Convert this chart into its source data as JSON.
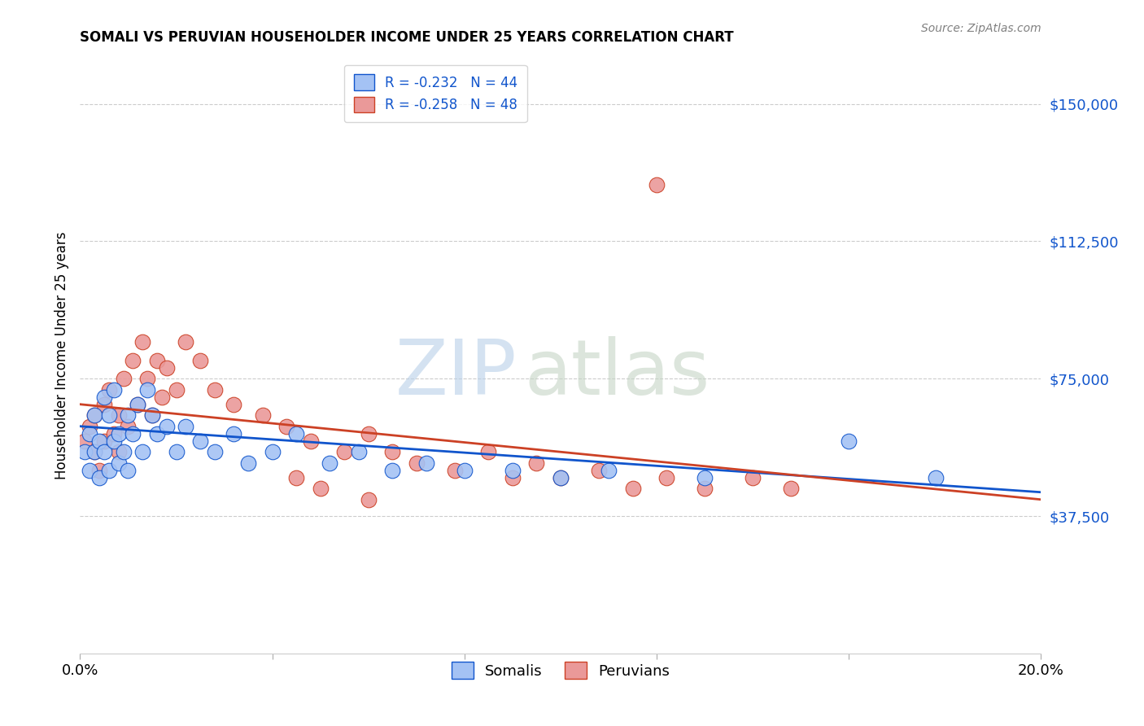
{
  "title": "SOMALI VS PERUVIAN HOUSEHOLDER INCOME UNDER 25 YEARS CORRELATION CHART",
  "source": "Source: ZipAtlas.com",
  "ylabel": "Householder Income Under 25 years",
  "xlim": [
    0.0,
    0.2
  ],
  "ylim": [
    0,
    162500
  ],
  "yticks": [
    37500,
    75000,
    112500,
    150000
  ],
  "ytick_labels": [
    "$37,500",
    "$75,000",
    "$112,500",
    "$150,000"
  ],
  "xticks": [
    0.0,
    0.04,
    0.08,
    0.12,
    0.16,
    0.2
  ],
  "xtick_labels": [
    "0.0%",
    "",
    "",
    "",
    "",
    "20.0%"
  ],
  "somali_R": -0.232,
  "somali_N": 44,
  "peruvian_R": -0.258,
  "peruvian_N": 48,
  "somali_color": "#a4c2f4",
  "peruvian_color": "#ea9999",
  "somali_line_color": "#1155cc",
  "peruvian_line_color": "#cc4125",
  "background_color": "#ffffff",
  "somali_x": [
    0.001,
    0.002,
    0.002,
    0.003,
    0.003,
    0.004,
    0.004,
    0.005,
    0.005,
    0.006,
    0.006,
    0.007,
    0.007,
    0.008,
    0.008,
    0.009,
    0.01,
    0.01,
    0.011,
    0.012,
    0.013,
    0.014,
    0.015,
    0.016,
    0.018,
    0.02,
    0.022,
    0.025,
    0.028,
    0.032,
    0.035,
    0.04,
    0.045,
    0.052,
    0.058,
    0.065,
    0.072,
    0.08,
    0.09,
    0.1,
    0.11,
    0.13,
    0.16,
    0.178
  ],
  "somali_y": [
    55000,
    60000,
    50000,
    65000,
    55000,
    58000,
    48000,
    70000,
    55000,
    65000,
    50000,
    72000,
    58000,
    60000,
    52000,
    55000,
    65000,
    50000,
    60000,
    68000,
    55000,
    72000,
    65000,
    60000,
    62000,
    55000,
    62000,
    58000,
    55000,
    60000,
    52000,
    55000,
    60000,
    52000,
    55000,
    50000,
    52000,
    50000,
    50000,
    48000,
    50000,
    48000,
    58000,
    48000
  ],
  "peruvian_x": [
    0.001,
    0.002,
    0.003,
    0.003,
    0.004,
    0.005,
    0.005,
    0.006,
    0.007,
    0.008,
    0.008,
    0.009,
    0.01,
    0.011,
    0.012,
    0.013,
    0.014,
    0.015,
    0.016,
    0.017,
    0.018,
    0.02,
    0.022,
    0.025,
    0.028,
    0.032,
    0.038,
    0.043,
    0.048,
    0.055,
    0.06,
    0.065,
    0.07,
    0.078,
    0.085,
    0.09,
    0.095,
    0.1,
    0.108,
    0.115,
    0.122,
    0.13,
    0.14,
    0.148,
    0.12,
    0.045,
    0.05,
    0.06
  ],
  "peruvian_y": [
    58000,
    62000,
    55000,
    65000,
    50000,
    68000,
    58000,
    72000,
    60000,
    65000,
    55000,
    75000,
    62000,
    80000,
    68000,
    85000,
    75000,
    65000,
    80000,
    70000,
    78000,
    72000,
    85000,
    80000,
    72000,
    68000,
    65000,
    62000,
    58000,
    55000,
    60000,
    55000,
    52000,
    50000,
    55000,
    48000,
    52000,
    48000,
    50000,
    45000,
    48000,
    45000,
    48000,
    45000,
    128000,
    48000,
    45000,
    42000
  ],
  "somali_trend_x": [
    0.0,
    0.2
  ],
  "somali_trend_y": [
    62000,
    44000
  ],
  "peruvian_trend_x": [
    0.0,
    0.2
  ],
  "peruvian_trend_y": [
    68000,
    42000
  ]
}
